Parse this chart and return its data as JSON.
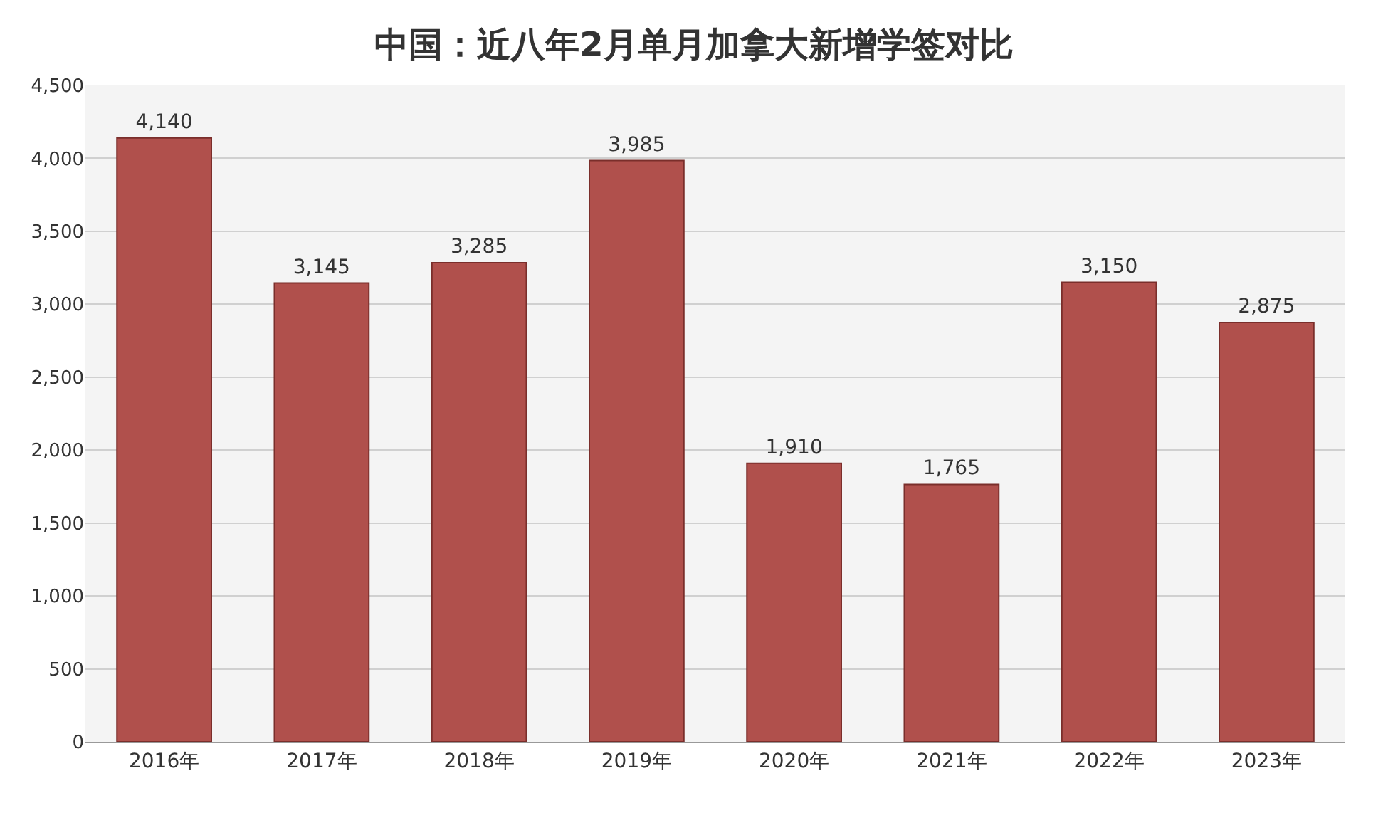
{
  "chart_data": {
    "type": "bar",
    "title": "中国：近八年2月单月加拿大新增学签对比",
    "categories": [
      "2016年",
      "2017年",
      "2018年",
      "2019年",
      "2020年",
      "2021年",
      "2022年",
      "2023年"
    ],
    "values": [
      4140,
      3145,
      3285,
      3985,
      1910,
      1765,
      3150,
      2875
    ],
    "color": "#b0504c",
    "ylim": [
      0,
      4500
    ],
    "yticks": [
      0,
      500,
      {
        "value": 1000,
        "label": "1,000"
      },
      {
        "value": 1500,
        "label": "1,500"
      },
      {
        "value": 2000,
        "label": "2,000"
      },
      {
        "value": 2500,
        "label": "2,500"
      },
      {
        "value": 3000,
        "label": "3,000"
      },
      {
        "value": 3500,
        "label": "3,500"
      },
      {
        "value": 4000,
        "label": "4,000"
      },
      {
        "value": 4500,
        "label": "4,500"
      }
    ],
    "value_labels": [
      "4,140",
      "3,145",
      "3,285",
      "3,985",
      "1,910",
      "1,765",
      "3,150",
      "2,875"
    ],
    "grid": "y"
  }
}
